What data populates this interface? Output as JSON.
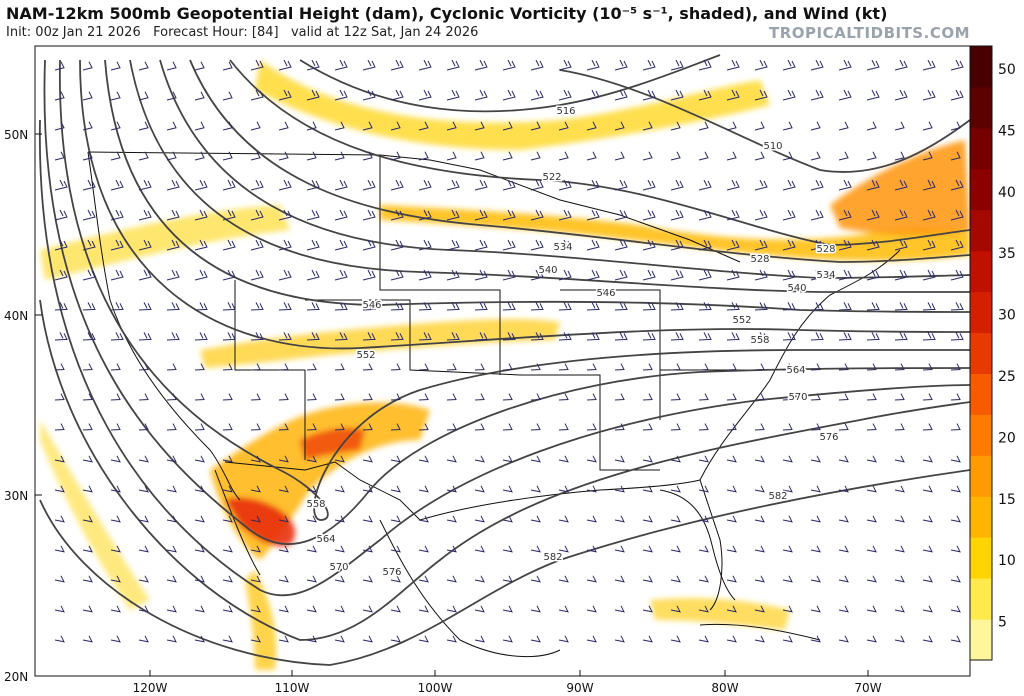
{
  "header": {
    "title": "NAM-12km 500mb Geopotential Height (dam), Cyclonic Vorticity (10⁻⁵ s⁻¹, shaded), and Wind (kt)",
    "init": "Init: 00z Jan 21 2026",
    "forecast_hour": "Forecast Hour: [84]",
    "valid": "valid at 12z Sat, Jan 24 2026",
    "brand": "TROPICALTIDBITS.COM"
  },
  "map": {
    "lat_labels": [
      "50N",
      "40N",
      "30N",
      "20N"
    ],
    "lon_labels": [
      "120W",
      "110W",
      "100W",
      "90W",
      "80W",
      "70W"
    ],
    "contour_labels": [
      {
        "text": "516"
      },
      {
        "text": "510"
      },
      {
        "text": "522"
      },
      {
        "text": "528"
      },
      {
        "text": "528"
      },
      {
        "text": "534"
      },
      {
        "text": "534"
      },
      {
        "text": "540"
      },
      {
        "text": "540"
      },
      {
        "text": "546"
      },
      {
        "text": "546"
      },
      {
        "text": "552"
      },
      {
        "text": "552"
      },
      {
        "text": "558"
      },
      {
        "text": "558"
      },
      {
        "text": "564"
      },
      {
        "text": "564"
      },
      {
        "text": "570"
      },
      {
        "text": "570"
      },
      {
        "text": "576"
      },
      {
        "text": "576"
      },
      {
        "text": "582"
      },
      {
        "text": "582"
      }
    ]
  },
  "colorbar": {
    "ticks": [
      "5",
      "10",
      "15",
      "20",
      "25",
      "30",
      "35",
      "40",
      "45",
      "50"
    ],
    "colors": [
      "#fff59a",
      "#ffe94d",
      "#ffd400",
      "#ffb400",
      "#ff9a00",
      "#ff7a00",
      "#f85a00",
      "#e83a00",
      "#d42000",
      "#bf1000",
      "#a50800",
      "#8c0000",
      "#740000",
      "#5c0000",
      "#480000"
    ]
  }
}
